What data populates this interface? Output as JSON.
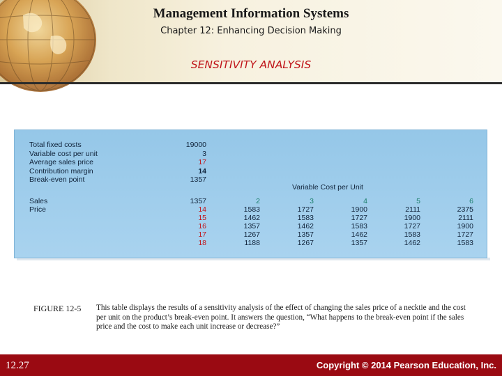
{
  "header": {
    "book_title": "Management Information Systems",
    "chapter": "Chapter 12: Enhancing Decision Making",
    "slide_title": "SENSITIVITY ANALYSIS"
  },
  "table": {
    "summary": [
      {
        "label": "Total fixed costs",
        "value": "19000",
        "style": "normal"
      },
      {
        "label": "Variable cost per unit",
        "value": "3",
        "style": "normal"
      },
      {
        "label": "Average sales price",
        "value": "17",
        "style": "red"
      },
      {
        "label": "Contribution margin",
        "value": "14",
        "style": "bold"
      },
      {
        "label": "Break-even point",
        "value": "1357",
        "style": "normal"
      }
    ],
    "variable_cost_header": "Variable Cost per Unit",
    "sales_label": "Sales",
    "price_label": "Price",
    "cost_columns": [
      "2",
      "3",
      "4",
      "5",
      "6"
    ],
    "sales_base": "1357",
    "prices": [
      "14",
      "15",
      "16",
      "17",
      "18"
    ],
    "rows": [
      [
        "1583",
        "1727",
        "1900",
        "2111",
        "2375"
      ],
      [
        "1462",
        "1583",
        "1727",
        "1900",
        "2111"
      ],
      [
        "1357",
        "1462",
        "1583",
        "1727",
        "1900"
      ],
      [
        "1267",
        "1357",
        "1462",
        "1583",
        "1727"
      ],
      [
        "1188",
        "1267",
        "1357",
        "1462",
        "1583"
      ]
    ]
  },
  "figure": {
    "label": "FIGURE 12-5",
    "caption": "This table displays the results of a sensitivity analysis of the effect of changing the sales price of a necktie and the cost per unit on the product’s break-even point. It answers the question, “What happens to the break-even point if the sales price and the cost to make each unit increase or decrease?”"
  },
  "footer": {
    "page_number": "12.27",
    "copyright": "Copyright © 2014 Pearson Education, Inc."
  },
  "colors": {
    "accent_red": "#c0161b",
    "footer_bar": "#9a0a12",
    "panel_blue": "#a9d3ef",
    "header_green": "#1b7e6b"
  }
}
